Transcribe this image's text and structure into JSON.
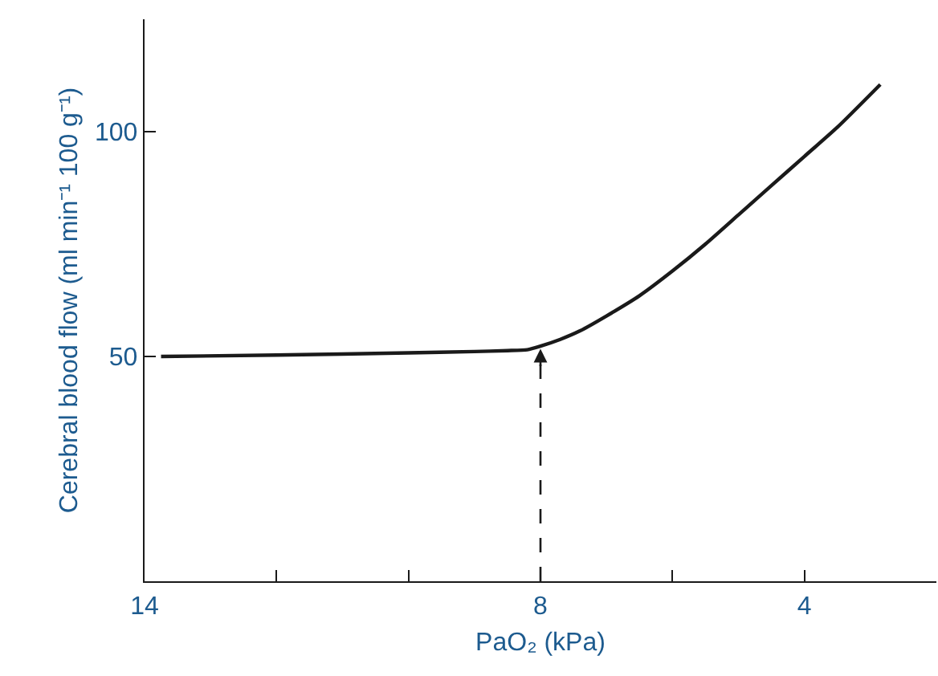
{
  "chart_data": {
    "type": "line",
    "xlabel": "PaO₂ (kPa)",
    "ylabel": "Cerebral blood flow (ml min⁻¹ 100 g⁻¹)",
    "series": [
      {
        "color": "#1a1a1a",
        "x": [
          13.75,
          12,
          10,
          9,
          8.5,
          8.2,
          8,
          7.7,
          7.4,
          7,
          6.5,
          6,
          5.5,
          5,
          4.5,
          4,
          3.5,
          2.85
        ],
        "values": [
          50,
          50.3,
          50.8,
          51.1,
          51.3,
          51.5,
          52.3,
          53.8,
          55.7,
          59,
          63.5,
          69,
          75,
          81.5,
          88,
          94.5,
          101,
          110.5
        ]
      }
    ],
    "xlim": [
      14,
      2
    ],
    "ylim": [
      0,
      125
    ],
    "xticks": [
      14,
      {
        "value": 12,
        "label": null
      },
      {
        "value": 10,
        "label": null
      },
      8,
      {
        "value": 6,
        "label": null
      },
      4
    ],
    "yticks": [
      50,
      100
    ],
    "ref_lines": [
      {
        "axis": "x",
        "value": 8,
        "line_style": "dashed",
        "color": "#1a1a1a"
      }
    ],
    "marker": "none",
    "line_style": "solid"
  }
}
